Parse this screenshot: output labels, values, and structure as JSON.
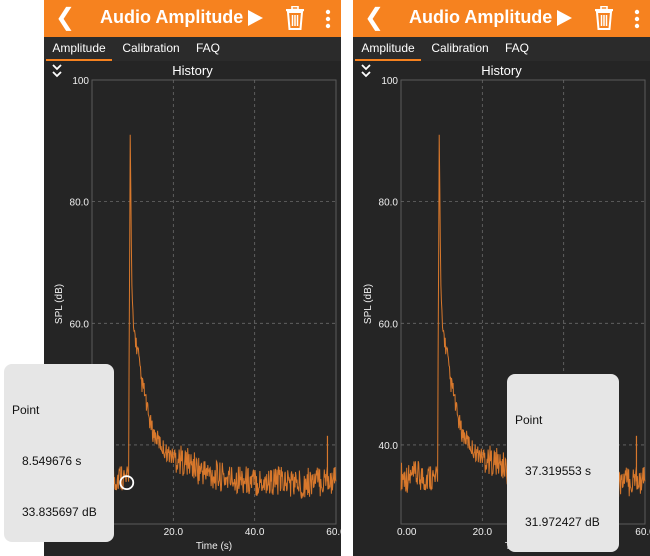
{
  "panels": [
    {
      "app_title": "Audio Amplitude",
      "tabs": [
        "Amplitude",
        "Calibration",
        "FAQ"
      ],
      "active_tab": 0,
      "history_title": "History",
      "tooltip": {
        "heading": "Point",
        "time": "8.549676 s",
        "level": "33.835697 dB"
      },
      "marker": {
        "x": 8.55,
        "y": 33.8
      }
    },
    {
      "app_title": "Audio Amplitude",
      "tabs": [
        "Amplitude",
        "Calibration",
        "FAQ"
      ],
      "active_tab": 0,
      "history_title": "History",
      "tooltip": {
        "heading": "Point",
        "time": "37.319553 s",
        "level": "31.972427 dB"
      },
      "marker": {
        "x": 37.3,
        "y": 31.97
      }
    }
  ],
  "colors": {
    "accent": "#f6821f",
    "background": "#252525",
    "trace": "#d8782c"
  },
  "chart_data": {
    "type": "line",
    "title": "History",
    "xlabel": "Time (s)",
    "ylabel": "SPL (dB)",
    "xlim": [
      0,
      60
    ],
    "ylim": [
      27,
      100
    ],
    "xticks": [
      "0.00",
      "20.0",
      "40.0",
      "60.0"
    ],
    "yticks": [
      "40.0",
      "60.0",
      "80.0",
      "100"
    ],
    "ytick_values": [
      40,
      60,
      80,
      100
    ],
    "xtick_values": [
      0,
      20,
      40,
      60
    ],
    "grid": true,
    "series": [
      {
        "x": [
          0,
          2,
          4,
          6,
          7.5,
          8.5,
          9.0,
          9.4,
          9.8,
          10.2,
          10.6,
          11.0,
          11.4,
          11.8,
          12.3,
          12.8,
          13.5,
          14.2,
          15,
          16,
          17,
          18,
          19,
          20,
          22,
          24,
          26,
          28,
          30,
          33,
          36,
          39,
          42,
          45,
          48,
          51,
          54,
          56,
          57,
          58,
          59,
          60
        ],
        "y": [
          35,
          34.5,
          35,
          34.5,
          35,
          33.8,
          35,
          91,
          65,
          59,
          58,
          56,
          55,
          52,
          50,
          49,
          46,
          44,
          42,
          41,
          40,
          39,
          38.5,
          38,
          37.5,
          37,
          36,
          35.5,
          35,
          34.5,
          34.5,
          34,
          34,
          34,
          34,
          33.5,
          34,
          34,
          34,
          35,
          34,
          34
        ]
      }
    ]
  }
}
